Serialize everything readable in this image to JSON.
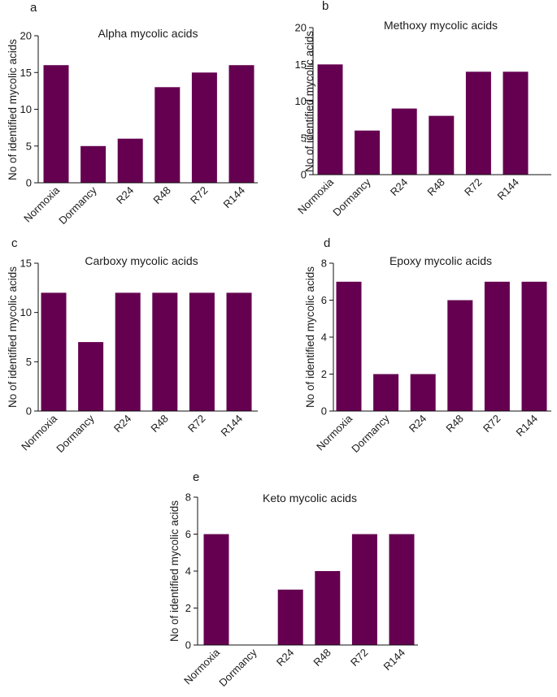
{
  "figure": {
    "bar_color": "#650050",
    "axis_color": "#111111",
    "text_color": "#1a1a1a"
  },
  "chart_data": [
    {
      "panel": "a",
      "type": "bar",
      "title": "Alpha mycolic acids",
      "ylabel": "No of identified mycolic acids",
      "xlabel": "",
      "categories": [
        "Normoxia",
        "Dormancy",
        "R24",
        "R48",
        "R72",
        "R144"
      ],
      "values": [
        16,
        5,
        6,
        13,
        15,
        16
      ],
      "ylim": [
        0,
        20
      ],
      "yticks": [
        0,
        5,
        10,
        15,
        20
      ]
    },
    {
      "panel": "b",
      "type": "bar",
      "title": "Methoxy mycolic acids",
      "ylabel": "No of identified mycolic acids",
      "xlabel": "",
      "categories": [
        "Normoxia",
        "Dormancy",
        "R24",
        "R48",
        "R72",
        "R144"
      ],
      "values": [
        15,
        6,
        9,
        8,
        14,
        14
      ],
      "ylim": [
        0,
        20
      ],
      "yticks": [
        0,
        5,
        10,
        15,
        20
      ]
    },
    {
      "panel": "c",
      "type": "bar",
      "title": "Carboxy mycolic acids",
      "ylabel": "No of identified mycolic acids",
      "xlabel": "",
      "categories": [
        "Normoxia",
        "Dormancy",
        "R24",
        "R48",
        "R72",
        "R144"
      ],
      "values": [
        12,
        7,
        12,
        12,
        12,
        12
      ],
      "ylim": [
        0,
        15
      ],
      "yticks": [
        0,
        5,
        10,
        15
      ]
    },
    {
      "panel": "d",
      "type": "bar",
      "title": "Epoxy mycolic acids",
      "ylabel": "No of identified mycolic acids",
      "xlabel": "",
      "categories": [
        "Normoxia",
        "Dormancy",
        "R24",
        "R48",
        "R72",
        "R144"
      ],
      "values": [
        7,
        2,
        2,
        6,
        7,
        7
      ],
      "ylim": [
        0,
        8
      ],
      "yticks": [
        0,
        2,
        4,
        6,
        8
      ]
    },
    {
      "panel": "e",
      "type": "bar",
      "title": "Keto mycolic acids",
      "ylabel": "No of identified mycolic acids",
      "xlabel": "",
      "categories": [
        "Normoxia",
        "Dormancy",
        "R24",
        "R48",
        "R72",
        "R144"
      ],
      "values": [
        6,
        0,
        3,
        4,
        6,
        6
      ],
      "ylim": [
        0,
        8
      ],
      "yticks": [
        0,
        2,
        4,
        6,
        8
      ]
    }
  ]
}
